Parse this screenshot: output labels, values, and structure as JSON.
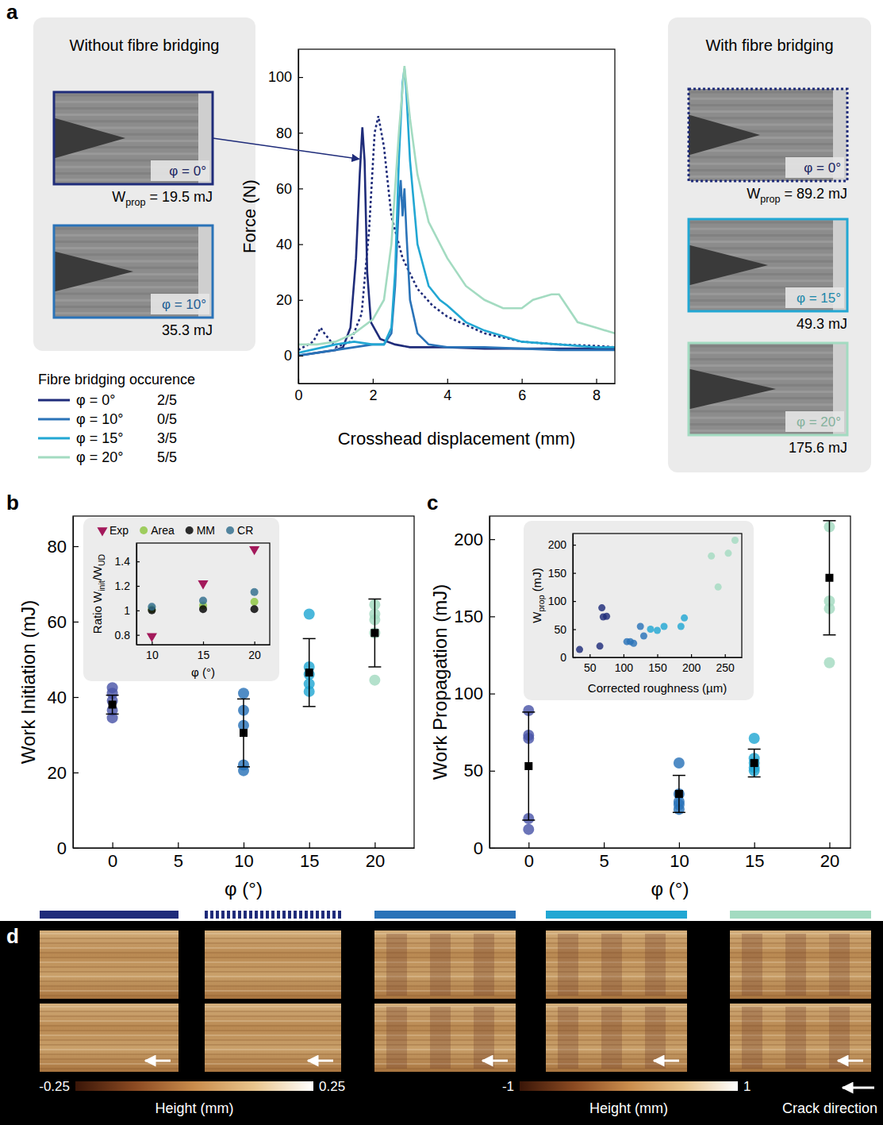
{
  "chart_data": [
    {
      "type": "line",
      "panel_label": "a",
      "xlabel": "Crosshead displacement (mm)",
      "ylabel": "Force (N)",
      "xlim": [
        0,
        8.5
      ],
      "ylim": [
        -10,
        110
      ],
      "xticks": [
        0,
        2,
        4,
        6,
        8
      ],
      "yticks": [
        0,
        20,
        40,
        60,
        80,
        100
      ],
      "legend_title": "Fibre bridging occurence",
      "legend": "bottom-left",
      "series": [
        {
          "name": "φ = 0°",
          "occurrence": "2/5",
          "color": "#1f2c7a",
          "line_style": "solid",
          "x": [
            0,
            0.5,
            1.0,
            1.2,
            1.4,
            1.55,
            1.65,
            1.72,
            1.78,
            1.85,
            1.95,
            2.2,
            2.6,
            3,
            4,
            5,
            6,
            7,
            8,
            8.5
          ],
          "values": [
            0,
            1,
            2,
            3,
            10,
            35,
            65,
            82,
            70,
            30,
            12,
            6,
            4,
            3,
            3,
            2.5,
            2.5,
            2.5,
            2.5,
            2.5
          ]
        },
        {
          "color": "#1f2c7a",
          "line_style": "dotted",
          "x": [
            0,
            0.4,
            0.6,
            0.7,
            1.0,
            1.4,
            1.7,
            1.9,
            2.05,
            2.15,
            2.3,
            2.5,
            2.8,
            3.2,
            3.6,
            4,
            5,
            6,
            7,
            8,
            8.5
          ],
          "values": [
            2,
            5,
            10,
            8,
            3,
            5,
            15,
            45,
            80,
            86,
            75,
            50,
            35,
            24,
            18,
            14,
            8,
            5,
            4,
            3.5,
            3
          ]
        },
        {
          "name": "φ = 10°",
          "occurrence": "0/5",
          "color": "#2a73b8",
          "line_style": "solid",
          "x": [
            0,
            1,
            1.5,
            2,
            2.3,
            2.5,
            2.6,
            2.7,
            2.75,
            2.8,
            2.85,
            2.9,
            3.0,
            3.2,
            3.5,
            4,
            5,
            6,
            7,
            8,
            8.5
          ],
          "values": [
            0,
            2,
            3,
            4,
            4,
            8,
            25,
            55,
            63,
            50,
            60,
            45,
            20,
            8,
            4,
            3,
            3,
            2.5,
            2,
            2,
            2
          ]
        },
        {
          "name": "φ = 15°",
          "occurrence": "3/5",
          "color": "#22a7d3",
          "line_style": "solid",
          "x": [
            0,
            1,
            1.5,
            2,
            2.3,
            2.5,
            2.6,
            2.7,
            2.8,
            2.85,
            2.9,
            3.0,
            3.2,
            3.5,
            3.8,
            4,
            4.5,
            5,
            6,
            7,
            8,
            8.5
          ],
          "values": [
            1,
            4,
            5,
            4,
            4,
            10,
            30,
            70,
            98,
            103,
            95,
            70,
            40,
            25,
            20,
            18,
            12,
            9,
            5,
            4,
            3,
            3
          ]
        },
        {
          "name": "φ = 20°",
          "occurrence": "5/5",
          "color": "#a3dbc1",
          "line_style": "solid",
          "x": [
            0,
            0.5,
            1,
            1.5,
            2,
            2.3,
            2.5,
            2.7,
            2.85,
            3.0,
            3.2,
            3.5,
            4,
            4.5,
            5,
            5.5,
            6,
            6.3,
            6.8,
            7,
            7.2,
            7.5,
            8,
            8.5
          ],
          "values": [
            4,
            4,
            5,
            8,
            13,
            20,
            40,
            80,
            104,
            85,
            65,
            48,
            35,
            25,
            20,
            17,
            17,
            20,
            22,
            22,
            18,
            12,
            10,
            8
          ]
        }
      ]
    },
    {
      "type": "scatter",
      "panel_label": "b",
      "xlabel": "φ (°)",
      "ylabel": "Work Initiation (mJ)",
      "xlim": [
        -3,
        23
      ],
      "ylim": [
        0,
        88
      ],
      "xticks": [
        0,
        5,
        10,
        15,
        20
      ],
      "yticks": [
        0,
        20,
        40,
        60,
        80
      ],
      "series": [
        {
          "color": "#4a55a8",
          "marker": "circle",
          "x": [
            0,
            0,
            0,
            0,
            0
          ],
          "values": [
            34.5,
            36.5,
            39,
            41,
            42.5
          ]
        },
        {
          "color": "#2a73b8",
          "marker": "circle",
          "x": [
            10,
            10,
            10,
            10,
            10
          ],
          "values": [
            20.5,
            22,
            32.5,
            36.5,
            41
          ]
        },
        {
          "color": "#22a7d3",
          "marker": "circle",
          "x": [
            15,
            15,
            15,
            15,
            15
          ],
          "values": [
            41.5,
            43.5,
            46,
            48,
            62
          ]
        },
        {
          "color": "#a3dbc1",
          "marker": "circle",
          "x": [
            20,
            20,
            20,
            20,
            20
          ],
          "values": [
            44.5,
            57,
            60.5,
            62,
            64.5
          ]
        },
        {
          "color": "#000000",
          "marker": "square",
          "x": [
            0,
            10,
            15,
            20
          ],
          "values": [
            38,
            30.5,
            46.5,
            57
          ],
          "error": [
            2.5,
            9,
            9,
            9
          ]
        }
      ]
    },
    {
      "type": "scatter",
      "xlabel": "φ (°)",
      "ylabel": [
        "Ratio W",
        "init",
        "/W",
        "UD"
      ],
      "xlim": [
        8.5,
        21.5
      ],
      "ylim": [
        0.72,
        1.55
      ],
      "xticks": [
        10,
        15,
        20
      ],
      "yticks": [
        0.8,
        1,
        1.2,
        1.4
      ],
      "legend": "top",
      "series": [
        {
          "name": "Exp",
          "color": "#a3195b",
          "marker": "triangle-down",
          "x": [
            10,
            15,
            20
          ],
          "values": [
            0.79,
            1.22,
            1.5
          ]
        },
        {
          "name": "Area",
          "color": "#8cc63e",
          "marker": "circle",
          "x": [
            10,
            15,
            20
          ],
          "values": [
            1.01,
            1.04,
            1.07
          ]
        },
        {
          "name": "MM",
          "color": "#000000",
          "marker": "circle",
          "x": [
            10,
            15,
            20
          ],
          "values": [
            1.0,
            1.01,
            1.01
          ]
        },
        {
          "name": "CR",
          "color": "#2f6d8c",
          "marker": "circle",
          "x": [
            10,
            15,
            20
          ],
          "values": [
            1.03,
            1.08,
            1.15
          ]
        }
      ]
    },
    {
      "type": "scatter",
      "panel_label": "c",
      "xlabel": "φ (°)",
      "ylabel": "Work Propagation (mJ)",
      "xlim": [
        -2.6,
        21.4
      ],
      "ylim": [
        0,
        215
      ],
      "xticks": [
        0,
        5,
        10,
        15,
        20
      ],
      "yticks": [
        0,
        50,
        100,
        150,
        200
      ],
      "series": [
        {
          "color": "#4a55a8",
          "marker": "circle",
          "x": [
            0,
            0,
            0,
            0,
            0
          ],
          "values": [
            12,
            19,
            71,
            73,
            89
          ]
        },
        {
          "color": "#2a73b8",
          "marker": "circle",
          "x": [
            10,
            10,
            10,
            10,
            10
          ],
          "values": [
            25,
            28,
            30,
            35,
            55
          ]
        },
        {
          "color": "#22a7d3",
          "marker": "circle",
          "x": [
            15,
            15,
            15,
            15,
            15
          ],
          "values": [
            50,
            52,
            55,
            58,
            71
          ]
        },
        {
          "color": "#a3dbc1",
          "marker": "circle",
          "x": [
            20,
            20,
            20,
            20
          ],
          "values": [
            120,
            155,
            160,
            208
          ]
        },
        {
          "color": "#000000",
          "marker": "square",
          "x": [
            0,
            10,
            15,
            20
          ],
          "values": [
            53,
            35,
            55,
            175
          ],
          "error": [
            35,
            12,
            9,
            37
          ]
        }
      ]
    },
    {
      "type": "scatter",
      "xlabel": "Corrected roughness (µm)",
      "ylabel": [
        "W",
        "prop",
        " (mJ)"
      ],
      "xlim": [
        25,
        275
      ],
      "ylim": [
        0,
        220
      ],
      "xticks": [
        50,
        100,
        150,
        200,
        250
      ],
      "yticks": [
        0,
        50,
        100,
        150,
        200
      ],
      "series": [
        {
          "color": "#1f2c7a",
          "marker": "circle",
          "x": [
            35,
            65,
            68,
            70,
            75
          ],
          "values": [
            14,
            20,
            88,
            72,
            73
          ]
        },
        {
          "color": "#2a73b8",
          "marker": "circle",
          "x": [
            105,
            110,
            115,
            125,
            130
          ],
          "values": [
            28,
            28,
            25,
            55,
            38
          ]
        },
        {
          "color": "#22a7d3",
          "marker": "circle",
          "x": [
            140,
            150,
            160,
            185,
            190
          ],
          "values": [
            50,
            48,
            55,
            55,
            70
          ]
        },
        {
          "color": "#a3dbc1",
          "marker": "circle",
          "x": [
            230,
            240,
            255,
            265
          ],
          "values": [
            180,
            125,
            185,
            208
          ]
        }
      ]
    }
  ],
  "image_panels": [
    {
      "title": "Without fibre bridging",
      "images": [
        {
          "angle": "φ = 0°",
          "color": "#1f2c7a",
          "line_style": "solid",
          "work_label": [
            "W",
            "prop",
            " = 19.5 mJ"
          ]
        },
        {
          "angle": "φ = 10°",
          "color": "#2a73b8",
          "line_style": "solid",
          "work_label": [
            "35.3 mJ"
          ]
        }
      ]
    },
    {
      "title": "With fibre bridging",
      "images": [
        {
          "angle": "φ = 0°",
          "color": "#1f2c7a",
          "line_style": "dotted",
          "work_label": [
            "W",
            "prop",
            " = 89.2 mJ"
          ]
        },
        {
          "angle": "φ = 15°",
          "color": "#22a7d3",
          "line_style": "solid",
          "work_label": [
            "49.3 mJ"
          ]
        },
        {
          "angle": "φ = 20°",
          "color": "#a3dbc1",
          "line_style": "solid",
          "work_label": [
            "175.6 mJ"
          ]
        }
      ]
    }
  ],
  "surface_panel": {
    "panel_label": "d",
    "columns": [
      {
        "color": "#1f2c7a",
        "line_style": "solid"
      },
      {
        "color": "#1f2c7a",
        "line_style": "dashed"
      },
      {
        "color": "#2a73b8",
        "line_style": "solid"
      },
      {
        "color": "#22a7d3",
        "line_style": "solid"
      },
      {
        "color": "#a3dbc1",
        "line_style": "solid"
      }
    ],
    "colorbars": [
      {
        "label": "Height (mm)",
        "range": [
          -0.25,
          0.25
        ],
        "ticks": [
          -0.25,
          0.25
        ]
      },
      {
        "label": "Height (mm)",
        "range": [
          -1,
          1
        ],
        "ticks": [
          -1,
          1
        ]
      }
    ],
    "arrow_label": "Crack direction"
  }
}
